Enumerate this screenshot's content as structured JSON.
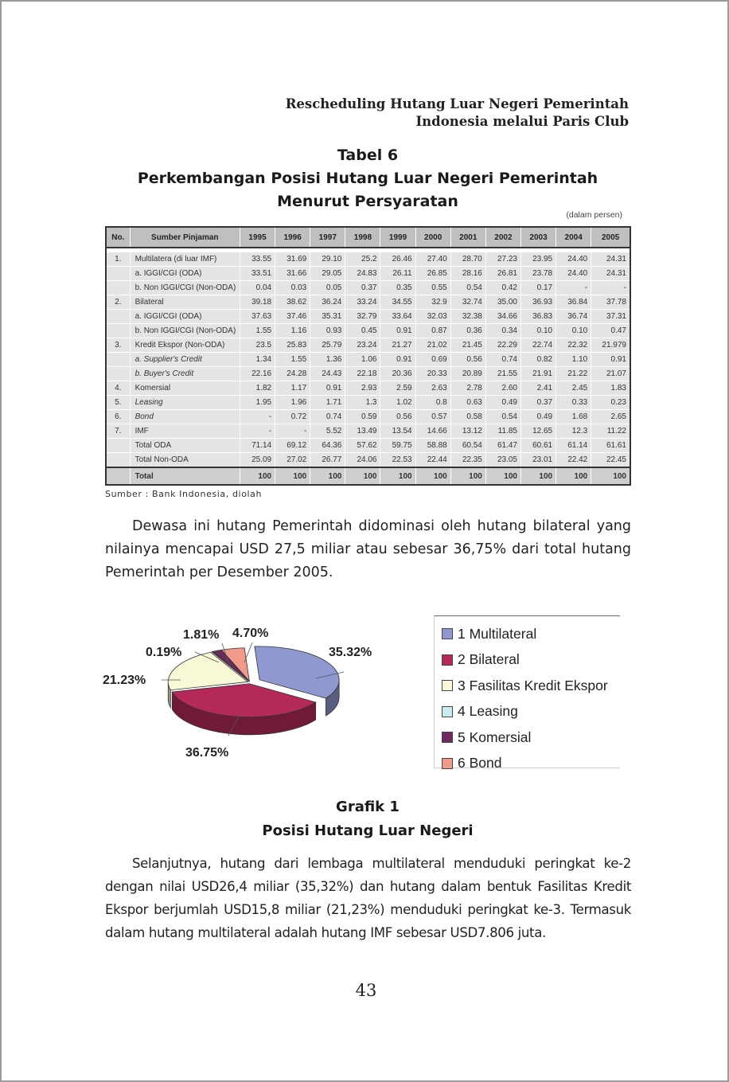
{
  "running_head": {
    "line1": "Rescheduling Hutang Luar Negeri Pemerintah",
    "line2": "Indonesia melalui Paris Club"
  },
  "table": {
    "caption_1": "Tabel 6",
    "caption_2": "Perkembangan Posisi Hutang Luar Negeri Pemerintah",
    "caption_3": "Menurut Persyaratan",
    "unit_note": "(dalam persen)",
    "headers": [
      "No.",
      "Sumber Pinjaman",
      "1995",
      "1996",
      "1997",
      "1998",
      "1999",
      "2000",
      "2001",
      "2002",
      "2003",
      "2004",
      "2005"
    ],
    "rows": [
      {
        "no": "1.",
        "name": "Multilatera (di luar IMF)",
        "italic": false,
        "values": [
          "33.55",
          "31.69",
          "29.10",
          "25.2",
          "26.46",
          "27.40",
          "28.70",
          "27.23",
          "23.95",
          "24.40",
          "24.31"
        ]
      },
      {
        "no": "",
        "name": "a. IGGI/CGI (ODA)",
        "italic": false,
        "values": [
          "33.51",
          "31.66",
          "29.05",
          "24.83",
          "26.11",
          "26.85",
          "28.16",
          "26.81",
          "23.78",
          "24.40",
          "24.31"
        ]
      },
      {
        "no": "",
        "name": "b. Non IGGI/CGI (Non-ODA)",
        "italic": false,
        "values": [
          "0.04",
          "0.03",
          "0.05",
          "0.37",
          "0.35",
          "0.55",
          "0.54",
          "0.42",
          "0.17",
          "-",
          "-"
        ]
      },
      {
        "no": "2.",
        "name": "Bilateral",
        "italic": false,
        "values": [
          "39.18",
          "38.62",
          "36.24",
          "33.24",
          "34.55",
          "32.9",
          "32.74",
          "35.00",
          "36.93",
          "36.84",
          "37.78"
        ]
      },
      {
        "no": "",
        "name": "a. IGGI/CGI (ODA)",
        "italic": false,
        "values": [
          "37.63",
          "37.46",
          "35.31",
          "32.79",
          "33.64",
          "32.03",
          "32.38",
          "34.66",
          "36.83",
          "36.74",
          "37.31"
        ]
      },
      {
        "no": "",
        "name": "b. Non IGGI/CGI (Non-ODA)",
        "italic": false,
        "values": [
          "1.55",
          "1.16",
          "0.93",
          "0.45",
          "0.91",
          "0.87",
          "0.36",
          "0.34",
          "0.10",
          "0.10",
          "0.47"
        ]
      },
      {
        "no": "3.",
        "name": "Kredit Ekspor (Non-ODA)",
        "italic": false,
        "values": [
          "23.5",
          "25.83",
          "25.79",
          "23.24",
          "21.27",
          "21.02",
          "21.45",
          "22.29",
          "22.74",
          "22.32",
          "21.979"
        ]
      },
      {
        "no": "",
        "name": "a. Supplier's Credit",
        "italic": true,
        "values": [
          "1.34",
          "1.55",
          "1.36",
          "1.06",
          "0.91",
          "0.69",
          "0.56",
          "0.74",
          "0.82",
          "1.10",
          "0.91"
        ]
      },
      {
        "no": "",
        "name": "b. Buyer's Credit",
        "italic": true,
        "values": [
          "22.16",
          "24.28",
          "24.43",
          "22.18",
          "20.36",
          "20.33",
          "20.89",
          "21.55",
          "21.91",
          "21.22",
          "21.07"
        ]
      },
      {
        "no": "4.",
        "name": "Komersial",
        "italic": false,
        "values": [
          "1.82",
          "1.17",
          "0.91",
          "2.93",
          "2.59",
          "2.63",
          "2.78",
          "2.60",
          "2.41",
          "2.45",
          "1.83"
        ]
      },
      {
        "no": "5.",
        "name": "Leasing",
        "italic": true,
        "values": [
          "1.95",
          "1.96",
          "1.71",
          "1.3",
          "1.02",
          "0.8",
          "0.63",
          "0.49",
          "0.37",
          "0.33",
          "0.23"
        ]
      },
      {
        "no": "6.",
        "name": "Bond",
        "italic": true,
        "values": [
          "-",
          "0.72",
          "0.74",
          "0.59",
          "0.56",
          "0.57",
          "0.58",
          "0.54",
          "0.49",
          "1.68",
          "2.65"
        ]
      },
      {
        "no": "7.",
        "name": "IMF",
        "italic": false,
        "values": [
          "-",
          "-",
          "5.52",
          "13.49",
          "13.54",
          "14.66",
          "13.12",
          "11.85",
          "12.65",
          "12.3",
          "11.22"
        ]
      },
      {
        "no": "",
        "name": "Total ODA",
        "italic": false,
        "values": [
          "71.14",
          "69.12",
          "64.36",
          "57.62",
          "59.75",
          "58.88",
          "60.54",
          "61.47",
          "60.61",
          "61.14",
          "61.61"
        ]
      },
      {
        "no": "",
        "name": "Total Non-ODA",
        "italic": false,
        "values": [
          "25.09",
          "27.02",
          "26.77",
          "24.06",
          "22.53",
          "22.44",
          "22.35",
          "23.05",
          "23.01",
          "22.42",
          "22.45"
        ]
      }
    ],
    "total_row": {
      "no": "",
      "name": "Total",
      "values": [
        "100",
        "100",
        "100",
        "100",
        "100",
        "100",
        "100",
        "100",
        "100",
        "100",
        "100"
      ]
    },
    "source": "Sumber : Bank Indonesia, diolah"
  },
  "paragraph_1": "Dewasa ini hutang Pemerintah didominasi oleh hutang bilateral yang nilainya mencapai USD 27,5 miliar atau sebesar 36,75% dari total hutang Pemerintah per Desember 2005.",
  "chart_data": {
    "type": "pie",
    "title": "",
    "slices": [
      {
        "label": "1 Multilateral",
        "value": 35.32,
        "value_label": "35.32%",
        "color": "#8f98cf"
      },
      {
        "label": "2 Bilateral",
        "value": 36.75,
        "value_label": "36.75%",
        "color": "#b4285a"
      },
      {
        "label": "3 Fasilitas Kredit Ekspor",
        "value": 21.23,
        "value_label": "21.23%",
        "color": "#f8f7d6"
      },
      {
        "label": "4 Leasing",
        "value": 0.19,
        "value_label": "0.19%",
        "color": "#c9ebee"
      },
      {
        "label": "5 Komersial",
        "value": 1.81,
        "value_label": "1.81%",
        "color": "#6e2a5e"
      },
      {
        "label": "6 Bond",
        "value": 4.7,
        "value_label": "4.70%",
        "color": "#f19a8c"
      }
    ],
    "legend_position": "right"
  },
  "graph_caption_1": "Grafik 1",
  "graph_caption_2": "Posisi Hutang Luar Negeri",
  "paragraph_2": "Selanjutnya, hutang dari lembaga multilateral menduduki peringkat ke-2 dengan nilai USD26,4 miliar (35,32%) dan hutang dalam bentuk Fasilitas Kredit Ekspor berjumlah USD15,8 miliar (21,23%) menduduki peringkat ke-3. Termasuk dalam hutang multilateral adalah hutang IMF sebesar USD7.806 juta.",
  "page_number": "43"
}
